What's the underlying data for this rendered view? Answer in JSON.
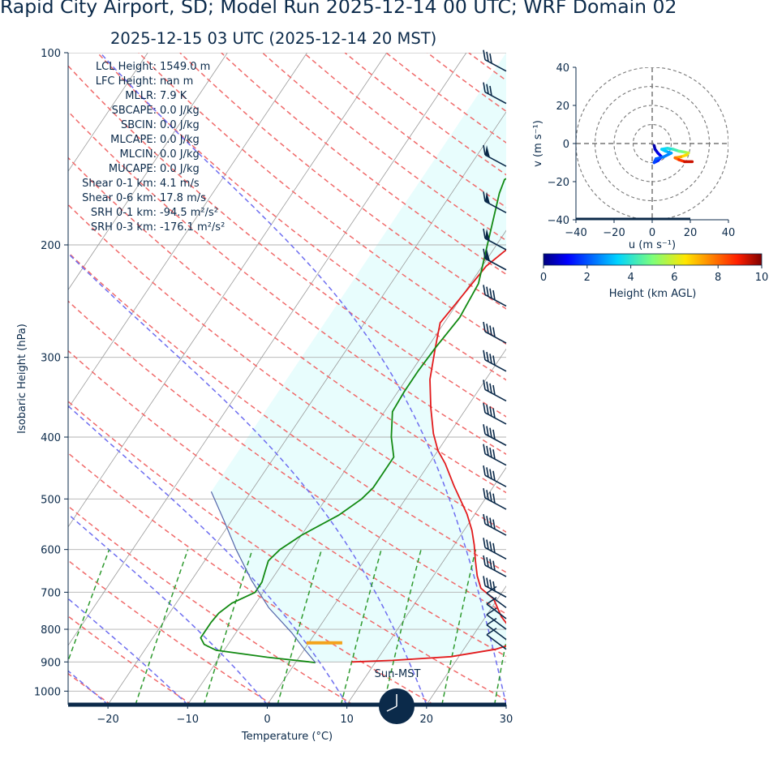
{
  "title": "Rapid City Airport, SD; Model Run 2025-12-14 00 UTC; WRF Domain 02",
  "subtitle": "2025-12-15 03 UTC  (2025-12-14 20 MST)",
  "colors": {
    "text": "#0b2a4a",
    "temperature": "#e31a1c",
    "dewpoint": "#138a13",
    "dry_adiabat": "#f06a6a",
    "moist_adiabat": "#6e6ef0",
    "mixing_ratio": "#2e9a2e",
    "isotherm": "#9a9a9a",
    "cape_shading": "#e8fdfd",
    "lcl_marker": "#f4a31c",
    "barbs": "#0b2a4a"
  },
  "indices": [
    {
      "label": "LCL Height:",
      "value": "1549.0 m"
    },
    {
      "label": "LFC Height:",
      "value": "nan m"
    },
    {
      "label": "MLLR:",
      "value": "7.9 K"
    },
    {
      "label": "SBCAPE:",
      "value": "0.0 J/kg"
    },
    {
      "label": "SBCIN:",
      "value": "0.0 J/kg"
    },
    {
      "label": "MLCAPE:",
      "value": "0.0 J/kg"
    },
    {
      "label": "MLCIN:",
      "value": "0.0 J/kg"
    },
    {
      "label": "MUCAPE:",
      "value": "0.0 J/kg"
    },
    {
      "label": "Shear 0-1 km:",
      "value": "4.1 m/s"
    },
    {
      "label": "Shear 0-6 km:",
      "value": "17.8 m/s"
    },
    {
      "label": "SRH 0-1 km:",
      "value": "-94.5 m²/s²"
    },
    {
      "label": "SRH 0-3 km:",
      "value": "-176.1 m²/s²"
    }
  ],
  "clock_label": "Sun-MST",
  "chart_data": [
    {
      "type": "line",
      "xlabel": "Temperature (°C)",
      "ylabel": "Isobaric Height (hPa)",
      "xlim": [
        -25,
        30
      ],
      "ylim": [
        1050,
        100
      ],
      "y_scale": "log",
      "xticks": [
        -20,
        -10,
        0,
        10,
        20,
        30
      ],
      "yticks": [
        100,
        200,
        300,
        400,
        500,
        600,
        700,
        800,
        900,
        1000
      ],
      "series": [
        {
          "key": "temperature",
          "points": [
            [
              7,
              900
            ],
            [
              12,
              895
            ],
            [
              19,
              883
            ],
            [
              24,
              860
            ],
            [
              26,
              840
            ],
            [
              25,
              812
            ],
            [
              22,
              765
            ],
            [
              19.5,
              717
            ],
            [
              17,
              690
            ],
            [
              15.5,
              660
            ],
            [
              14,
              625
            ],
            [
              12.5,
              590
            ],
            [
              11,
              560
            ],
            [
              9,
              528
            ],
            [
              5,
              477
            ],
            [
              2,
              440
            ],
            [
              0,
              420
            ],
            [
              -2,
              395
            ],
            [
              -4.5,
              360
            ],
            [
              -7,
              325
            ],
            [
              -9,
              290
            ],
            [
              -10.5,
              265
            ],
            [
              -10,
              240
            ],
            [
              -9.5,
              216
            ],
            [
              -8.5,
              205
            ],
            [
              -6,
              185
            ],
            [
              -3,
              166
            ],
            [
              1,
              148
            ],
            [
              3,
              137
            ],
            [
              4.5,
              125
            ],
            [
              5.5,
              115
            ],
            [
              6.5,
              105
            ],
            [
              7.5,
              100
            ]
          ]
        },
        {
          "key": "dewpoint",
          "points": [
            [
              2.5,
              902
            ],
            [
              -4,
              885
            ],
            [
              -11,
              863
            ],
            [
              -13,
              845
            ],
            [
              -14,
              825
            ],
            [
              -14,
              780
            ],
            [
              -13.8,
              755
            ],
            [
              -13,
              728
            ],
            [
              -11,
              700
            ],
            [
              -11,
              675
            ],
            [
              -11.5,
              650
            ],
            [
              -12,
              625
            ],
            [
              -11.5,
              600
            ],
            [
              -10,
              570
            ],
            [
              -7,
              530
            ],
            [
              -5.5,
              500
            ],
            [
              -5,
              480
            ],
            [
              -5,
              455
            ],
            [
              -5,
              430
            ],
            [
              -7,
              400
            ],
            [
              -9,
              365
            ],
            [
              -9.2,
              340
            ],
            [
              -9.2,
              315
            ],
            [
              -9,
              290
            ],
            [
              -8.5,
              260
            ],
            [
              -9,
              230
            ],
            [
              -11,
              202
            ],
            [
              -14,
              166
            ],
            [
              -14.5,
              158
            ],
            [
              -12,
              150
            ],
            [
              -8.5,
              140
            ],
            [
              -4,
              125
            ],
            [
              0.5,
              110
            ],
            [
              2,
              100
            ]
          ]
        },
        {
          "key": "parcel",
          "points": [
            [
              2.5,
              902
            ],
            [
              0,
              860
            ],
            [
              -3,
              810
            ],
            [
              -8,
              740
            ],
            [
              -12.5,
              670
            ],
            [
              -17,
              600
            ],
            [
              -21,
              540
            ],
            [
              -25,
              487
            ]
          ]
        }
      ]
    },
    {
      "type": "scatter",
      "xlabel": "u (m s⁻¹)",
      "ylabel": "v (m s⁻¹)",
      "xlim": [
        -40,
        40
      ],
      "ylim": [
        -40,
        40
      ],
      "xticks": [
        -40,
        -20,
        0,
        20,
        40
      ],
      "yticks": [
        -40,
        -20,
        0,
        20,
        40
      ],
      "rings": [
        10,
        20,
        30,
        40
      ],
      "colorbar": {
        "label": "Height (km AGL)",
        "ticks": [
          0,
          2,
          4,
          6,
          8,
          10
        ],
        "range": [
          0,
          10
        ]
      },
      "points": [
        {
          "u": 1,
          "v": -1,
          "h": 0.2
        },
        {
          "u": 1.5,
          "v": -3,
          "h": 0.5
        },
        {
          "u": 3,
          "v": -5,
          "h": 0.8
        },
        {
          "u": 5,
          "v": -7,
          "h": 1.1
        },
        {
          "u": 3,
          "v": -9,
          "h": 1.4
        },
        {
          "u": 1,
          "v": -10,
          "h": 1.7
        },
        {
          "u": 2,
          "v": -8,
          "h": 2.0
        },
        {
          "u": 6,
          "v": -7,
          "h": 2.3
        },
        {
          "u": 10,
          "v": -5,
          "h": 2.7
        },
        {
          "u": 7,
          "v": -4,
          "h": 3.0
        },
        {
          "u": 5,
          "v": -3,
          "h": 3.3
        },
        {
          "u": 8,
          "v": -2.5,
          "h": 3.6
        },
        {
          "u": 11,
          "v": -3,
          "h": 4.0
        },
        {
          "u": 14,
          "v": -4,
          "h": 4.5
        },
        {
          "u": 17,
          "v": -4.5,
          "h": 5.1
        },
        {
          "u": 19,
          "v": -5,
          "h": 5.7
        },
        {
          "u": 18,
          "v": -6,
          "h": 6.3
        },
        {
          "u": 15,
          "v": -7,
          "h": 7.0
        },
        {
          "u": 12,
          "v": -7.5,
          "h": 7.6
        },
        {
          "u": 14,
          "v": -8.5,
          "h": 8.3
        },
        {
          "u": 17,
          "v": -9.5,
          "h": 9.0
        },
        {
          "u": 21,
          "v": -9.5,
          "h": 9.7
        }
      ]
    }
  ]
}
